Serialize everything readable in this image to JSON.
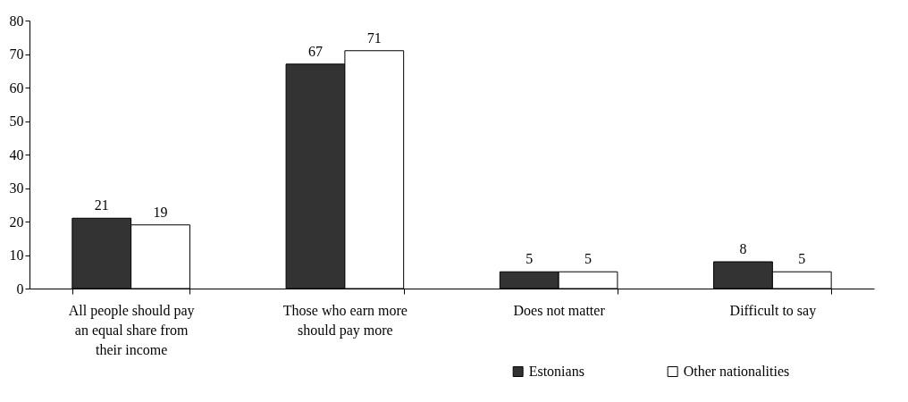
{
  "chart_data": {
    "type": "bar",
    "categories": [
      "All people should pay an equal share from their income",
      "Those who earn more should pay more",
      "Does not matter",
      "Difficult to say"
    ],
    "series": [
      {
        "name": "Estonians",
        "color": "#333333",
        "values": [
          21,
          67,
          5,
          8
        ]
      },
      {
        "name": "Other nationalities",
        "color": "#ffffff",
        "values": [
          19,
          71,
          5,
          5
        ]
      }
    ],
    "ylim": [
      0,
      80
    ],
    "yticks": [
      0,
      10,
      20,
      30,
      40,
      50,
      60,
      70,
      80
    ],
    "grid": false,
    "legend": "bottom right",
    "data_labels": true
  }
}
